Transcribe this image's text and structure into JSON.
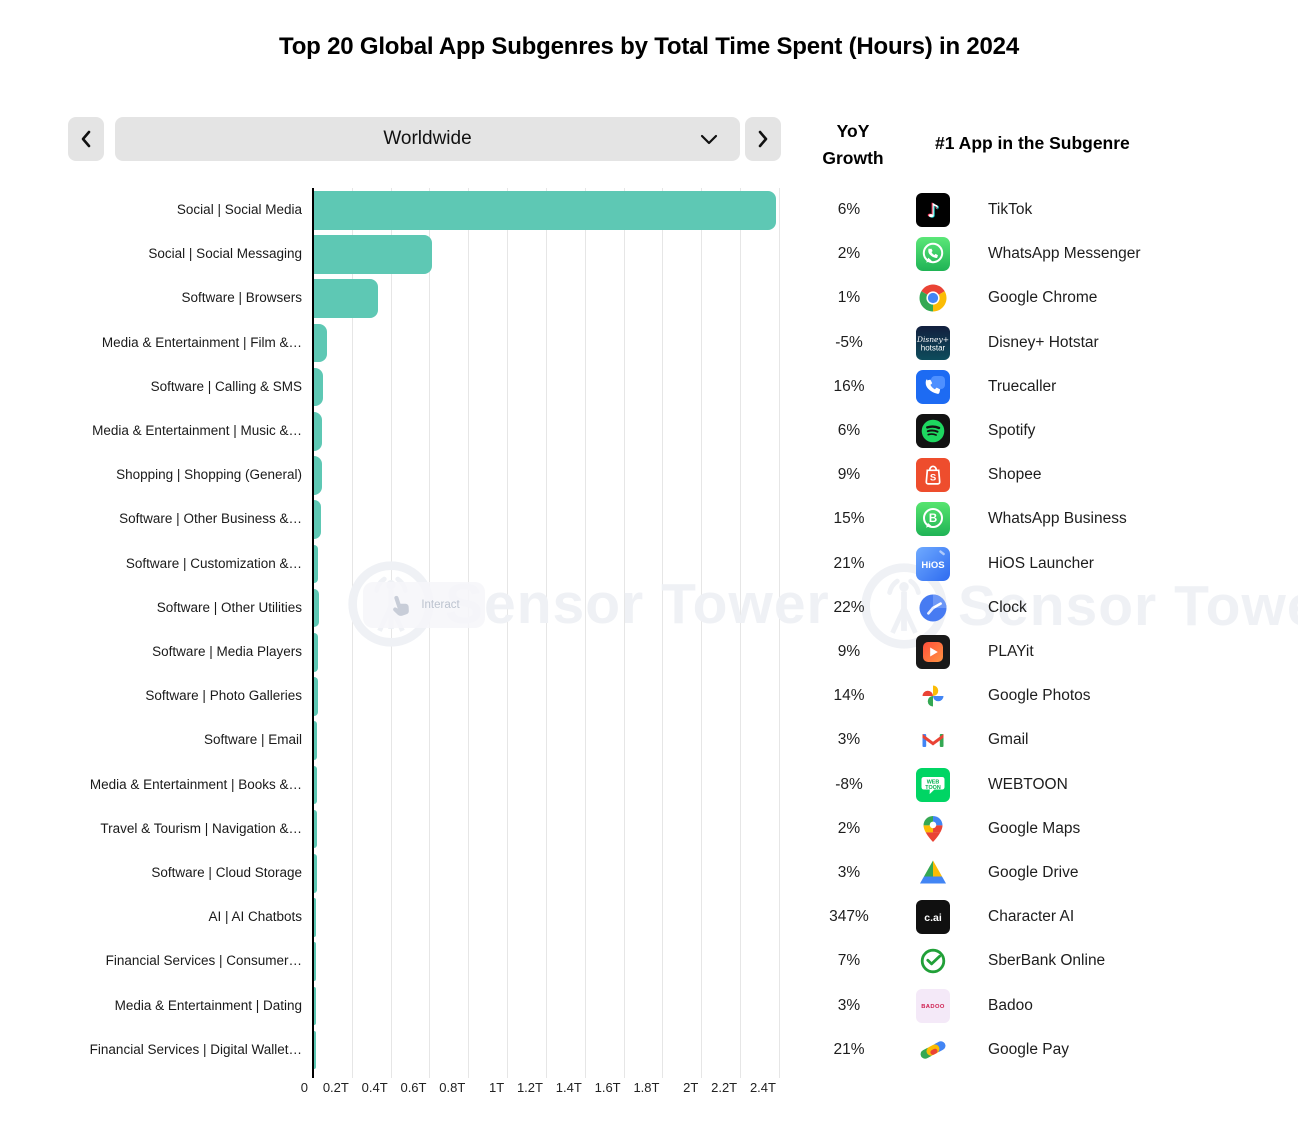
{
  "title": "Top 20 Global App Subgenres by Total Time Spent (Hours) in 2024",
  "controls": {
    "region": "Worldwide"
  },
  "table_headers": {
    "yoy": "YoY Growth",
    "top_app": "#1 App in the Subgenre"
  },
  "watermark": {
    "text": "Sensor Tower",
    "interact_label": "Interact"
  },
  "chart_data": {
    "type": "bar",
    "orientation": "horizontal",
    "title": "Top 20 Global App Subgenres by Total Time Spent (Hours) in 2024",
    "x_ticks": [
      "0",
      "0.2T",
      "0.4T",
      "0.6T",
      "0.8T",
      "1T",
      "1.2T",
      "1.4T",
      "1.6T",
      "1.8T",
      "2T",
      "2.2T",
      "2.4T"
    ],
    "xlim": [
      0,
      2.4
    ],
    "value_unit": "T",
    "bar_color": "#5ec8b4",
    "grid": true,
    "rows": [
      {
        "subgenre": "Social | Social Media",
        "hours_t": 2.38,
        "yoy_growth": "6%",
        "top_app": "TikTok",
        "icon": "tiktok-icon"
      },
      {
        "subgenre": "Social | Social Messaging",
        "hours_t": 0.61,
        "yoy_growth": "2%",
        "top_app": "WhatsApp Messenger",
        "icon": "whatsapp-icon"
      },
      {
        "subgenre": "Software | Browsers",
        "hours_t": 0.33,
        "yoy_growth": "1%",
        "top_app": "Google Chrome",
        "icon": "chrome-icon"
      },
      {
        "subgenre": "Media & Entertainment | Film &…",
        "hours_t": 0.065,
        "yoy_growth": "-5%",
        "top_app": "Disney+ Hotstar",
        "icon": "disney-hotstar-icon"
      },
      {
        "subgenre": "Software | Calling & SMS",
        "hours_t": 0.045,
        "yoy_growth": "16%",
        "top_app": "Truecaller",
        "icon": "truecaller-icon"
      },
      {
        "subgenre": "Media & Entertainment | Music &…",
        "hours_t": 0.042,
        "yoy_growth": "6%",
        "top_app": "Spotify",
        "icon": "spotify-icon"
      },
      {
        "subgenre": "Shopping | Shopping (General)",
        "hours_t": 0.043,
        "yoy_growth": "9%",
        "top_app": "Shopee",
        "icon": "shopee-icon"
      },
      {
        "subgenre": "Software | Other Business &…",
        "hours_t": 0.034,
        "yoy_growth": "15%",
        "top_app": "WhatsApp Business",
        "icon": "whatsapp-business-icon"
      },
      {
        "subgenre": "Software | Customization &…",
        "hours_t": 0.022,
        "yoy_growth": "21%",
        "top_app": "HiOS Launcher",
        "icon": "hios-launcher-icon"
      },
      {
        "subgenre": "Software | Other Utilities",
        "hours_t": 0.027,
        "yoy_growth": "22%",
        "top_app": "Clock",
        "icon": "clock-icon"
      },
      {
        "subgenre": "Software | Media Players",
        "hours_t": 0.022,
        "yoy_growth": "9%",
        "top_app": "PLAYit",
        "icon": "playit-icon"
      },
      {
        "subgenre": "Software | Photo Galleries",
        "hours_t": 0.019,
        "yoy_growth": "14%",
        "top_app": "Google Photos",
        "icon": "google-photos-icon"
      },
      {
        "subgenre": "Software | Email",
        "hours_t": 0.016,
        "yoy_growth": "3%",
        "top_app": "Gmail",
        "icon": "gmail-icon"
      },
      {
        "subgenre": "Media & Entertainment | Books &…",
        "hours_t": 0.015,
        "yoy_growth": "-8%",
        "top_app": "WEBTOON",
        "icon": "webtoon-icon"
      },
      {
        "subgenre": "Travel & Tourism | Navigation &…",
        "hours_t": 0.017,
        "yoy_growth": "2%",
        "top_app": "Google Maps",
        "icon": "google-maps-icon"
      },
      {
        "subgenre": "Software | Cloud Storage",
        "hours_t": 0.015,
        "yoy_growth": "3%",
        "top_app": "Google Drive",
        "icon": "google-drive-icon"
      },
      {
        "subgenre": "AI | AI Chatbots",
        "hours_t": 0.012,
        "yoy_growth": "347%",
        "top_app": "Character AI",
        "icon": "character-ai-icon"
      },
      {
        "subgenre": "Financial Services | Consumer…",
        "hours_t": 0.01,
        "yoy_growth": "7%",
        "top_app": "SberBank Online",
        "icon": "sberbank-icon"
      },
      {
        "subgenre": "Media & Entertainment | Dating",
        "hours_t": 0.008,
        "yoy_growth": "3%",
        "top_app": "Badoo",
        "icon": "badoo-icon"
      },
      {
        "subgenre": "Financial Services | Digital Wallet…",
        "hours_t": 0.008,
        "yoy_growth": "21%",
        "top_app": "Google Pay",
        "icon": "google-pay-icon"
      }
    ]
  }
}
